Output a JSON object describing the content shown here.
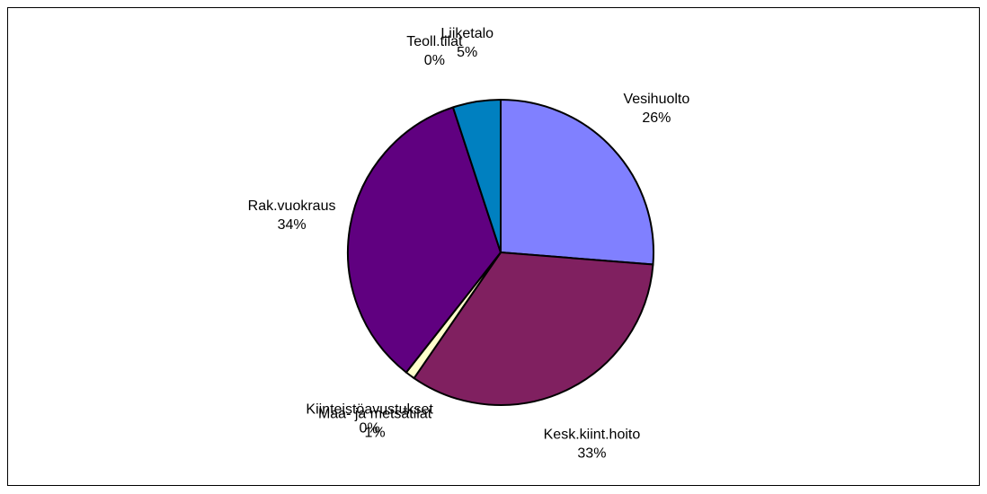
{
  "chart_data": {
    "type": "pie",
    "categories": [
      "Vesihuolto",
      "Kesk.kiint.hoito",
      "Maa- ja metsätilat",
      "Kiinteistöavustukset",
      "Rak.vuokraus",
      "Teoll.tilat",
      "Liiketalo"
    ],
    "values": [
      26,
      33,
      1,
      0,
      34,
      0,
      5
    ],
    "value_labels": [
      "26%",
      "33%",
      "1%",
      "0%",
      "34%",
      "0%",
      "5%"
    ],
    "colors": [
      "#8080ff",
      "#802060",
      "#ffffcc",
      "#ccffff",
      "#600080",
      "#ff8080",
      "#0080c0"
    ]
  }
}
